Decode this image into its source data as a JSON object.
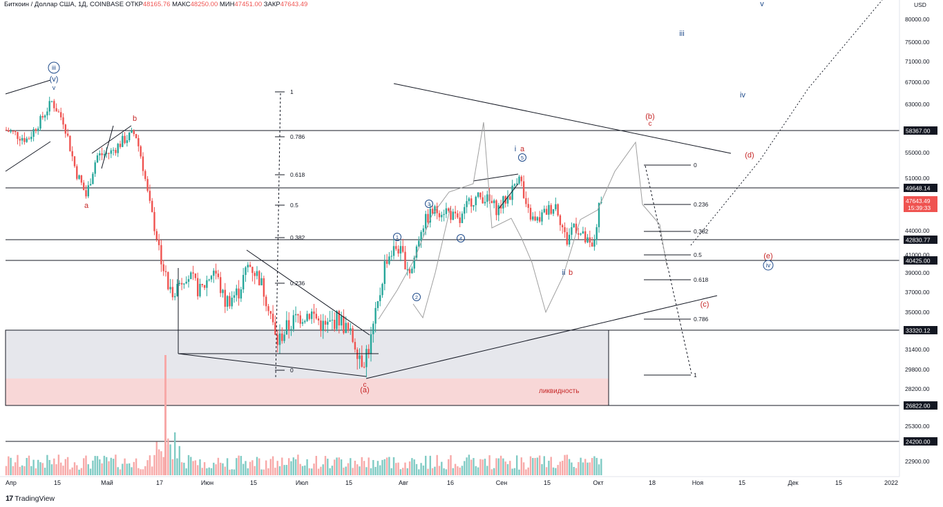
{
  "header": {
    "symbol": "Биткоин / Доллар США, 1Д, COINBASE",
    "open_label": "ОТКР",
    "open": "48165.76",
    "high_label": "МАКС",
    "high": "48250.00",
    "low_label": "МИН",
    "low": "47451.00",
    "close_label": "ЗАКР",
    "close": "47643.49"
  },
  "branding": {
    "logo_mark": "17",
    "logo_text": "TradingView"
  },
  "chart_data": {
    "type": "candlestick",
    "currency_label": "USD",
    "price_ticks": [
      "80000.00",
      "75000.00",
      "71000.00",
      "67000.00",
      "63000.00",
      "55000.00",
      "51000.00",
      "44000.00",
      "41000.00",
      "39000.00",
      "37000.00",
      "35000.00",
      "31400.00",
      "29800.00",
      "28200.00",
      "25300.00",
      "22900.00"
    ],
    "date_ticks": [
      "Апр",
      "15",
      "Май",
      "17",
      "Июн",
      "15",
      "Июл",
      "15",
      "Авг",
      "16",
      "Сен",
      "15",
      "Окт",
      "18",
      "Ноя",
      "15",
      "Дек",
      "15",
      "2022"
    ],
    "horizontal_levels": [
      {
        "price": "58367.00",
        "label": "58367.00"
      },
      {
        "price": "49648.14",
        "label": "49648.14"
      },
      {
        "price": "42830.77",
        "label": "42830.77"
      },
      {
        "price": "40425.00",
        "label": "40425.00"
      },
      {
        "price": "33320.12",
        "label": "33320.12"
      },
      {
        "price": "26822.00",
        "label": "26822.00"
      },
      {
        "price": "24200.00",
        "label": "24200.00"
      }
    ],
    "current_price": {
      "value": "47643.49",
      "countdown": "15:39:33",
      "color": "#ef5350"
    },
    "zone_label": "ликвидность",
    "fib_left": [
      "1",
      "0.786",
      "0.618",
      "0.5",
      "0.382",
      "0.236",
      "0"
    ],
    "fib_right": [
      "0",
      "0.236",
      "0.382",
      "0.5",
      "0.618",
      "0.786",
      "1"
    ],
    "wave_labels": {
      "iii_c": "iii",
      "v_paren": "(v)",
      "v_small": "v",
      "a1": "a",
      "b1": "b",
      "c1": "c",
      "a_paren": "(a)",
      "w1": "1",
      "w2": "2",
      "w3": "3",
      "w4": "4",
      "w5": "5",
      "i_a_i": "i",
      "i_a_a": "a",
      "ii": "ii",
      "b2": "b",
      "b_paren": "(b)",
      "c2": "c",
      "d_paren": "(d)",
      "e_paren": "(e)",
      "iv_c": "iv",
      "c_paren": "(c)",
      "top_v": "v",
      "top_iii": "iii",
      "top_iv": "iv"
    },
    "colors": {
      "up": "#26a69a",
      "down": "#ef5350",
      "zone": "#d1d4dc",
      "liq": "#f8d7d7",
      "wave_blue": "#1e4a8a",
      "wave_red": "#c62828"
    }
  }
}
